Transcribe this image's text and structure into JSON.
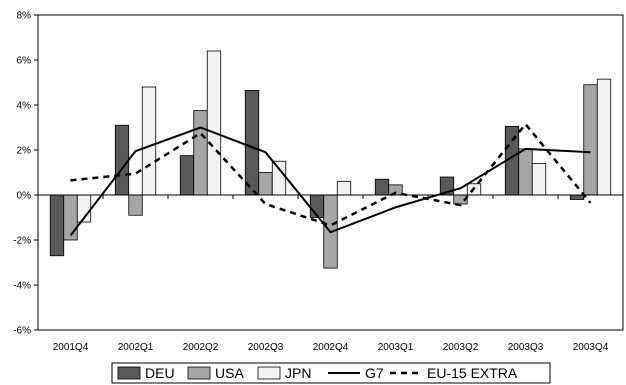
{
  "chart_data": {
    "type": "bar",
    "categories": [
      "2001Q4",
      "2002Q1",
      "2002Q2",
      "2002Q3",
      "2002Q4",
      "2003Q1",
      "2003Q2",
      "2003Q3",
      "2003Q4"
    ],
    "ylim": [
      -6,
      8
    ],
    "yticks": [
      "-6%",
      "-4%",
      "-2%",
      "0%",
      "2%",
      "4%",
      "6%",
      "8%"
    ],
    "grid": false,
    "legend_position": "bottom",
    "series": [
      {
        "name": "DEU",
        "kind": "bar",
        "color": "#595959",
        "values": [
          -2.7,
          3.1,
          1.75,
          4.65,
          -1.0,
          0.7,
          0.8,
          3.05,
          -0.2
        ]
      },
      {
        "name": "USA",
        "kind": "bar",
        "color": "#a6a6a6",
        "values": [
          -2.0,
          -0.9,
          3.75,
          1.0,
          -3.25,
          0.45,
          -0.4,
          2.05,
          4.9
        ]
      },
      {
        "name": "JPN",
        "kind": "bar",
        "color": "#f2f2f2",
        "values": [
          -1.2,
          4.8,
          6.4,
          1.5,
          0.6,
          0.0,
          0.5,
          1.4,
          5.15
        ]
      },
      {
        "name": "G7",
        "kind": "line",
        "style": "solid",
        "color": "#000000",
        "values": [
          -1.8,
          1.95,
          3.0,
          1.9,
          -1.65,
          -0.55,
          0.3,
          2.05,
          1.9
        ]
      },
      {
        "name": "EU-15 EXTRA",
        "kind": "line",
        "style": "dashed",
        "color": "#000000",
        "values": [
          0.65,
          0.95,
          2.75,
          -0.4,
          -1.35,
          0.1,
          -0.45,
          3.15,
          -0.35
        ]
      }
    ]
  }
}
